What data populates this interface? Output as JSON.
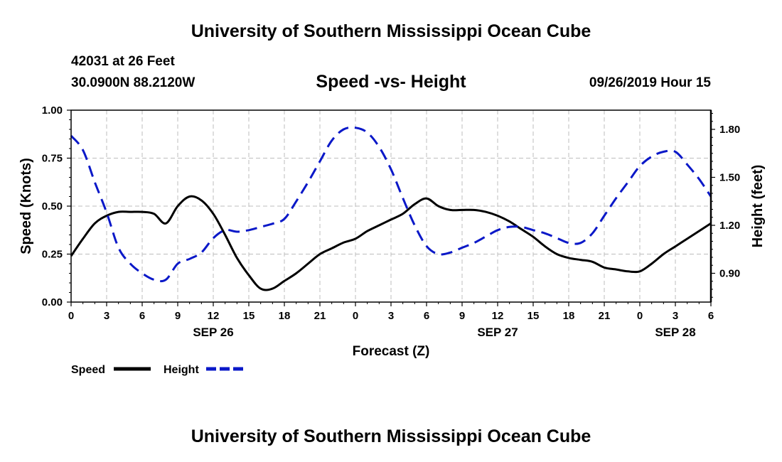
{
  "header": {
    "title": "University of Southern Mississippi Ocean Cube",
    "station": "42031 at 26 Feet",
    "coords": "30.0900N 88.2120W",
    "subtitle": "Speed -vs- Height",
    "datetime": "09/26/2019 Hour 15"
  },
  "footer": {
    "title": "University of Southern Mississippi Ocean Cube"
  },
  "chart_data": {
    "type": "line",
    "xlabel": "Forecast (Z)",
    "ylabel_left": "Speed (Knots)",
    "ylabel_right": "Height (feet)",
    "x_range_hours": [
      0,
      54
    ],
    "x_tick_labels": [
      "0",
      "3",
      "6",
      "9",
      "12",
      "15",
      "18",
      "21",
      "0",
      "3",
      "6",
      "9",
      "12",
      "15",
      "18",
      "21",
      "0",
      "3",
      "6"
    ],
    "date_labels": [
      {
        "label": "SEP 26",
        "hour": 12
      },
      {
        "label": "SEP 27",
        "hour": 36
      },
      {
        "label": "SEP 28",
        "hour": 51
      }
    ],
    "left_axis": {
      "ylim": [
        0,
        1.0
      ],
      "ticks": [
        0.0,
        0.25,
        0.5,
        0.75,
        1.0
      ],
      "tick_labels": [
        "0.00",
        "0.25",
        "0.50",
        "0.75",
        "1.00"
      ]
    },
    "right_axis": {
      "ylim": [
        0.72,
        1.92
      ],
      "ticks": [
        0.9,
        1.2,
        1.5,
        1.8
      ],
      "tick_labels": [
        "0.90",
        "1.20",
        "1.50",
        "1.80"
      ]
    },
    "grid": true,
    "legend": [
      {
        "label": "Speed",
        "color": "#000000",
        "style": "solid"
      },
      {
        "label": "Height",
        "color": "#0a18c8",
        "style": "dashed"
      }
    ],
    "series": [
      {
        "name": "Speed",
        "axis": "left",
        "color": "#000000",
        "style": "solid",
        "x": [
          0,
          1,
          2,
          3,
          4,
          5,
          6,
          7,
          8,
          9,
          10,
          11,
          12,
          13,
          14,
          15,
          16,
          17,
          18,
          19,
          20,
          21,
          22,
          23,
          24,
          25,
          26,
          27,
          28,
          29,
          30,
          31,
          32,
          33,
          34,
          35,
          36,
          37,
          38,
          39,
          40,
          41,
          42,
          43,
          44,
          45,
          46,
          47,
          48,
          49,
          50,
          51,
          52,
          53,
          54
        ],
        "values": [
          0.24,
          0.33,
          0.41,
          0.45,
          0.47,
          0.47,
          0.47,
          0.46,
          0.41,
          0.5,
          0.55,
          0.53,
          0.46,
          0.35,
          0.23,
          0.14,
          0.07,
          0.07,
          0.11,
          0.15,
          0.2,
          0.25,
          0.28,
          0.31,
          0.33,
          0.37,
          0.4,
          0.43,
          0.46,
          0.51,
          0.54,
          0.5,
          0.48,
          0.48,
          0.48,
          0.47,
          0.45,
          0.42,
          0.38,
          0.34,
          0.29,
          0.25,
          0.23,
          0.22,
          0.21,
          0.18,
          0.17,
          0.16,
          0.16,
          0.2,
          0.25,
          0.29,
          0.33,
          0.37,
          0.41
        ]
      },
      {
        "name": "Height",
        "axis": "right",
        "color": "#0a18c8",
        "style": "dashed",
        "x": [
          0,
          1,
          2,
          3,
          4,
          5,
          6,
          7,
          8,
          9,
          10,
          11,
          12,
          13,
          14,
          15,
          16,
          17,
          18,
          19,
          20,
          21,
          22,
          23,
          24,
          25,
          26,
          27,
          28,
          29,
          30,
          31,
          32,
          33,
          34,
          35,
          36,
          37,
          38,
          39,
          40,
          41,
          42,
          43,
          44,
          45,
          46,
          47,
          48,
          49,
          50,
          51,
          52,
          53,
          54
        ],
        "values": [
          1.76,
          1.67,
          1.47,
          1.28,
          1.06,
          0.96,
          0.9,
          0.86,
          0.86,
          0.96,
          0.99,
          1.03,
          1.12,
          1.17,
          1.16,
          1.17,
          1.19,
          1.21,
          1.24,
          1.35,
          1.47,
          1.6,
          1.73,
          1.8,
          1.81,
          1.78,
          1.69,
          1.55,
          1.37,
          1.2,
          1.07,
          1.02,
          1.03,
          1.06,
          1.09,
          1.13,
          1.17,
          1.19,
          1.19,
          1.17,
          1.15,
          1.12,
          1.09,
          1.09,
          1.15,
          1.26,
          1.37,
          1.47,
          1.57,
          1.63,
          1.66,
          1.66,
          1.58,
          1.49,
          1.38
        ]
      }
    ]
  }
}
